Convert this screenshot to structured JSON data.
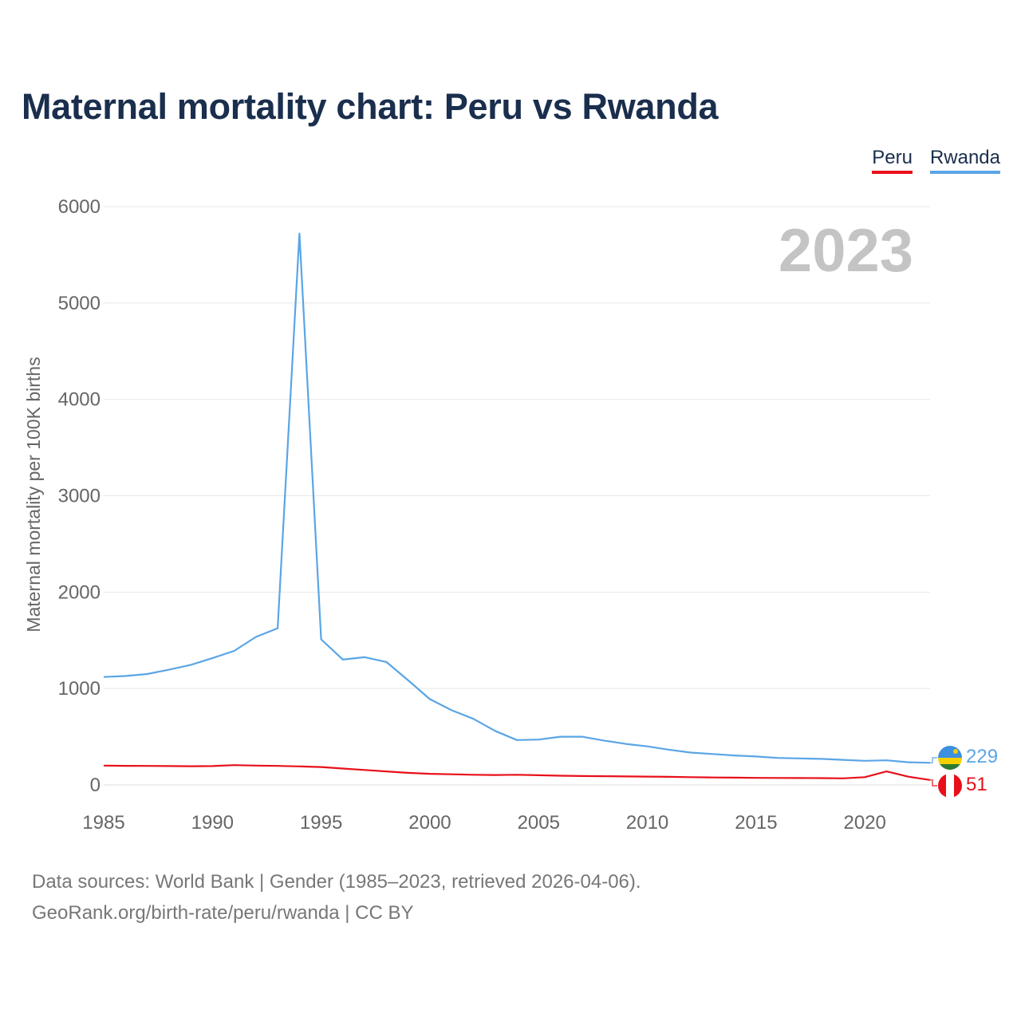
{
  "title": "Maternal mortality chart: Peru vs Rwanda",
  "legend": [
    {
      "name": "Peru",
      "color": "#e8101a"
    },
    {
      "name": "Rwanda",
      "color": "#5aa5e6"
    }
  ],
  "year_watermark": "2023",
  "footer": {
    "line1": "Data sources: World Bank | Gender (1985–2023, retrieved 2026-04-06).",
    "line2": "GeoRank.org/birth-rate/peru/rwanda | CC BY"
  },
  "chart_data": {
    "type": "line",
    "title": "Maternal mortality chart: Peru vs Rwanda",
    "xlabel": "",
    "ylabel": "Maternal mortality per 100K births",
    "xlim": [
      1985,
      2023
    ],
    "ylim": [
      0,
      6000
    ],
    "x_ticks": [
      1985,
      1990,
      1995,
      2000,
      2005,
      2010,
      2015,
      2020
    ],
    "y_ticks": [
      0,
      1000,
      2000,
      3000,
      4000,
      5000,
      6000
    ],
    "grid": true,
    "x": [
      1985,
      1986,
      1987,
      1988,
      1989,
      1990,
      1991,
      1992,
      1993,
      1994,
      1995,
      1996,
      1997,
      1998,
      1999,
      2000,
      2001,
      2002,
      2003,
      2004,
      2005,
      2006,
      2007,
      2008,
      2009,
      2010,
      2011,
      2012,
      2013,
      2014,
      2015,
      2016,
      2017,
      2018,
      2019,
      2020,
      2021,
      2022,
      2023
    ],
    "series": [
      {
        "name": "Rwanda",
        "color": "#5aa5e6",
        "end_label": "229",
        "values": [
          1120,
          1130,
          1150,
          1195,
          1245,
          1315,
          1390,
          1535,
          1625,
          5720,
          1510,
          1300,
          1325,
          1275,
          1085,
          890,
          775,
          685,
          560,
          465,
          470,
          500,
          500,
          460,
          425,
          400,
          365,
          335,
          320,
          305,
          295,
          280,
          275,
          270,
          260,
          250,
          255,
          235,
          229
        ]
      },
      {
        "name": "Peru",
        "color": "#e8101a",
        "end_label": "51",
        "values": [
          200,
          198,
          197,
          195,
          194,
          195,
          205,
          200,
          197,
          192,
          185,
          170,
          155,
          140,
          125,
          115,
          110,
          105,
          103,
          105,
          100,
          95,
          92,
          90,
          88,
          86,
          84,
          80,
          77,
          75,
          73,
          72,
          71,
          70,
          68,
          80,
          140,
          85,
          51
        ]
      }
    ]
  }
}
